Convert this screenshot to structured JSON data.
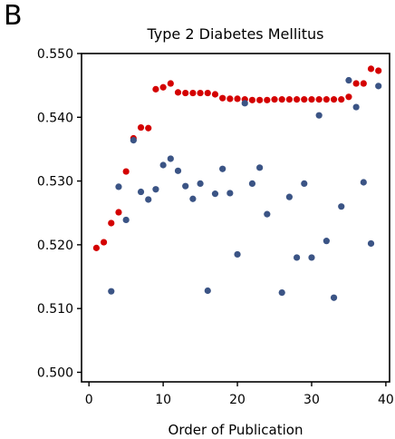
{
  "panel_label": "B",
  "chart_data": {
    "type": "scatter",
    "title": "Type 2 Diabetes Mellitus",
    "xlabel": "Order of Publication",
    "ylabel": "",
    "xlim": [
      -1,
      40.5
    ],
    "ylim": [
      0.4985,
      0.55
    ],
    "xticks": [
      0,
      10,
      20,
      30,
      40
    ],
    "yticks": [
      0.5,
      0.51,
      0.52,
      0.53,
      0.54,
      0.55
    ],
    "ytick_labels": [
      "0.500",
      "0.510",
      "0.520",
      "0.530",
      "0.540",
      "0.550"
    ],
    "grid": false,
    "series": [
      {
        "color": "#d40000",
        "points": [
          [
            1,
            0.5195
          ],
          [
            2,
            0.5204
          ],
          [
            3,
            0.5234
          ],
          [
            4,
            0.5251
          ],
          [
            5,
            0.5315
          ],
          [
            6,
            0.5367
          ],
          [
            7,
            0.5384
          ],
          [
            8,
            0.5383
          ],
          [
            9,
            0.5444
          ],
          [
            10,
            0.5447
          ],
          [
            11,
            0.5453
          ],
          [
            12,
            0.5439
          ],
          [
            13,
            0.5438
          ],
          [
            14,
            0.5438
          ],
          [
            15,
            0.5438
          ],
          [
            16,
            0.5438
          ],
          [
            17,
            0.5436
          ],
          [
            18,
            0.543
          ],
          [
            19,
            0.5429
          ],
          [
            20,
            0.5429
          ],
          [
            21,
            0.5428
          ],
          [
            22,
            0.5427
          ],
          [
            23,
            0.5427
          ],
          [
            24,
            0.5427
          ],
          [
            25,
            0.5428
          ],
          [
            26,
            0.5428
          ],
          [
            27,
            0.5428
          ],
          [
            28,
            0.5428
          ],
          [
            29,
            0.5428
          ],
          [
            30,
            0.5428
          ],
          [
            31,
            0.5428
          ],
          [
            32,
            0.5428
          ],
          [
            33,
            0.5428
          ],
          [
            34,
            0.5428
          ],
          [
            35,
            0.5432
          ],
          [
            36,
            0.5453
          ],
          [
            37,
            0.5453
          ],
          [
            38,
            0.5476
          ],
          [
            39,
            0.5473
          ]
        ]
      },
      {
        "color": "#3b5485",
        "points": [
          [
            3,
            0.5127
          ],
          [
            4,
            0.5291
          ],
          [
            5,
            0.5239
          ],
          [
            6,
            0.5364
          ],
          [
            7,
            0.5283
          ],
          [
            8,
            0.5271
          ],
          [
            9,
            0.5287
          ],
          [
            10,
            0.5325
          ],
          [
            11,
            0.5335
          ],
          [
            12,
            0.5316
          ],
          [
            13,
            0.5292
          ],
          [
            14,
            0.5272
          ],
          [
            15,
            0.5296
          ],
          [
            16,
            0.5128
          ],
          [
            17,
            0.528
          ],
          [
            18,
            0.5319
          ],
          [
            19,
            0.5281
          ],
          [
            20,
            0.5185
          ],
          [
            21,
            0.5422
          ],
          [
            22,
            0.5296
          ],
          [
            23,
            0.5321
          ],
          [
            24,
            0.5248
          ],
          [
            26,
            0.5125
          ],
          [
            27,
            0.5275
          ],
          [
            28,
            0.518
          ],
          [
            29,
            0.5296
          ],
          [
            30,
            0.518
          ],
          [
            31,
            0.5403
          ],
          [
            32,
            0.5206
          ],
          [
            33,
            0.5117
          ],
          [
            34,
            0.526
          ],
          [
            35,
            0.5458
          ],
          [
            36,
            0.5416
          ],
          [
            37,
            0.5298
          ],
          [
            38,
            0.5202
          ],
          [
            39,
            0.5449
          ]
        ]
      }
    ]
  }
}
